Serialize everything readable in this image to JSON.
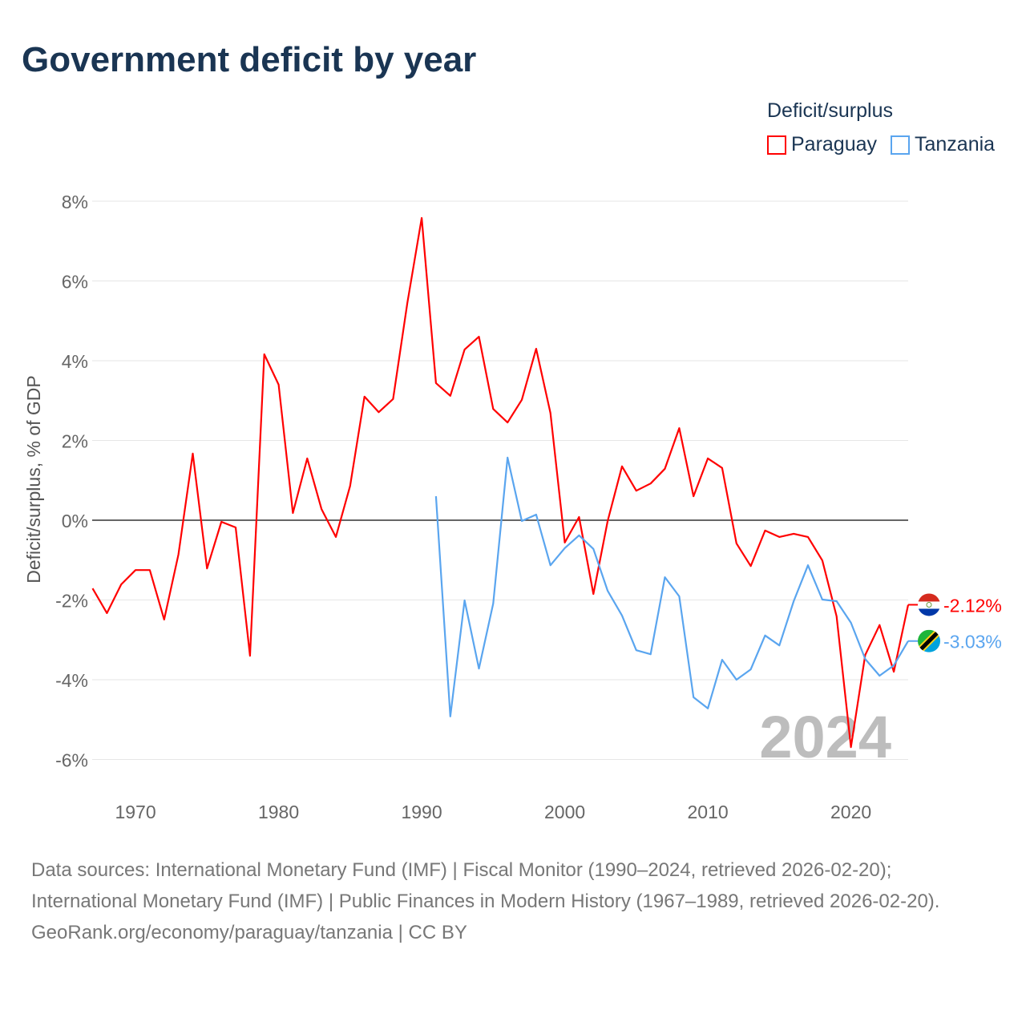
{
  "title": "Government deficit by year",
  "legend": {
    "title": "Deficit/surplus",
    "items": [
      "Paraguay",
      "Tanzania"
    ]
  },
  "footer": {
    "sources": "Data sources: International Monetary Fund (IMF) | Fiscal Monitor (1990–2024, retrieved 2026-02-20); International Monetary Fund (IMF) | Public Finances in Modern History (1967–1989, retrieved 2026-02-20).",
    "credit": "GeoRank.org/economy/paraguay/tanzania | CC BY"
  },
  "chart_data": {
    "type": "line",
    "title": "Government deficit by year",
    "xlabel": "",
    "ylabel": "Deficit/surplus, % of GDP",
    "xlim": [
      1967,
      2024
    ],
    "ylim": [
      -7,
      8.5
    ],
    "yticks": [
      8,
      6,
      4,
      2,
      0,
      -2,
      -4,
      -6
    ],
    "ytick_labels": [
      "8%",
      "6%",
      "4%",
      "2%",
      "0%",
      "-2%",
      "-4%",
      "-6%"
    ],
    "xticks": [
      1970,
      1980,
      1990,
      2000,
      2010,
      2020
    ],
    "xtick_labels": [
      "1970",
      "1980",
      "1990",
      "2000",
      "2010",
      "2020"
    ],
    "year_watermark": "2024",
    "series": [
      {
        "name": "Paraguay",
        "color": "#ff0000",
        "end_label": "-2.12%",
        "start_year": 1967,
        "values": [
          -1.71,
          -2.33,
          -1.61,
          -1.25,
          -1.25,
          -2.49,
          -0.86,
          1.67,
          -1.21,
          -0.04,
          -0.18,
          -3.4,
          4.16,
          3.4,
          0.18,
          1.55,
          0.28,
          -0.42,
          0.86,
          3.1,
          2.71,
          3.04,
          5.45,
          7.58,
          3.44,
          3.12,
          4.28,
          4.6,
          2.79,
          2.45,
          3.02,
          4.3,
          2.69,
          -0.56,
          0.08,
          -1.85,
          -0.02,
          1.35,
          0.74,
          0.92,
          1.29,
          2.31,
          0.6,
          1.55,
          1.31,
          -0.58,
          -1.15,
          -0.26,
          -0.42,
          -0.34,
          -0.42,
          -1.01,
          -2.41,
          -5.69,
          -3.38,
          -2.63,
          -3.8,
          -2.12
        ]
      },
      {
        "name": "Tanzania",
        "color": "#5aa5ef",
        "end_label": "-3.03%",
        "start_year": 1991,
        "values": [
          0.6,
          -4.92,
          -2.01,
          -3.72,
          -2.09,
          1.57,
          -0.02,
          0.14,
          -1.13,
          -0.7,
          -0.38,
          -0.72,
          -1.77,
          -2.39,
          -3.26,
          -3.36,
          -1.43,
          -1.91,
          -4.44,
          -4.72,
          -3.5,
          -4.0,
          -3.74,
          -2.89,
          -3.14,
          -2.03,
          -1.13,
          -1.99,
          -2.03,
          -2.57,
          -3.48,
          -3.9,
          -3.64,
          -3.03
        ]
      }
    ],
    "grid": true,
    "legend_position": "top-right"
  }
}
